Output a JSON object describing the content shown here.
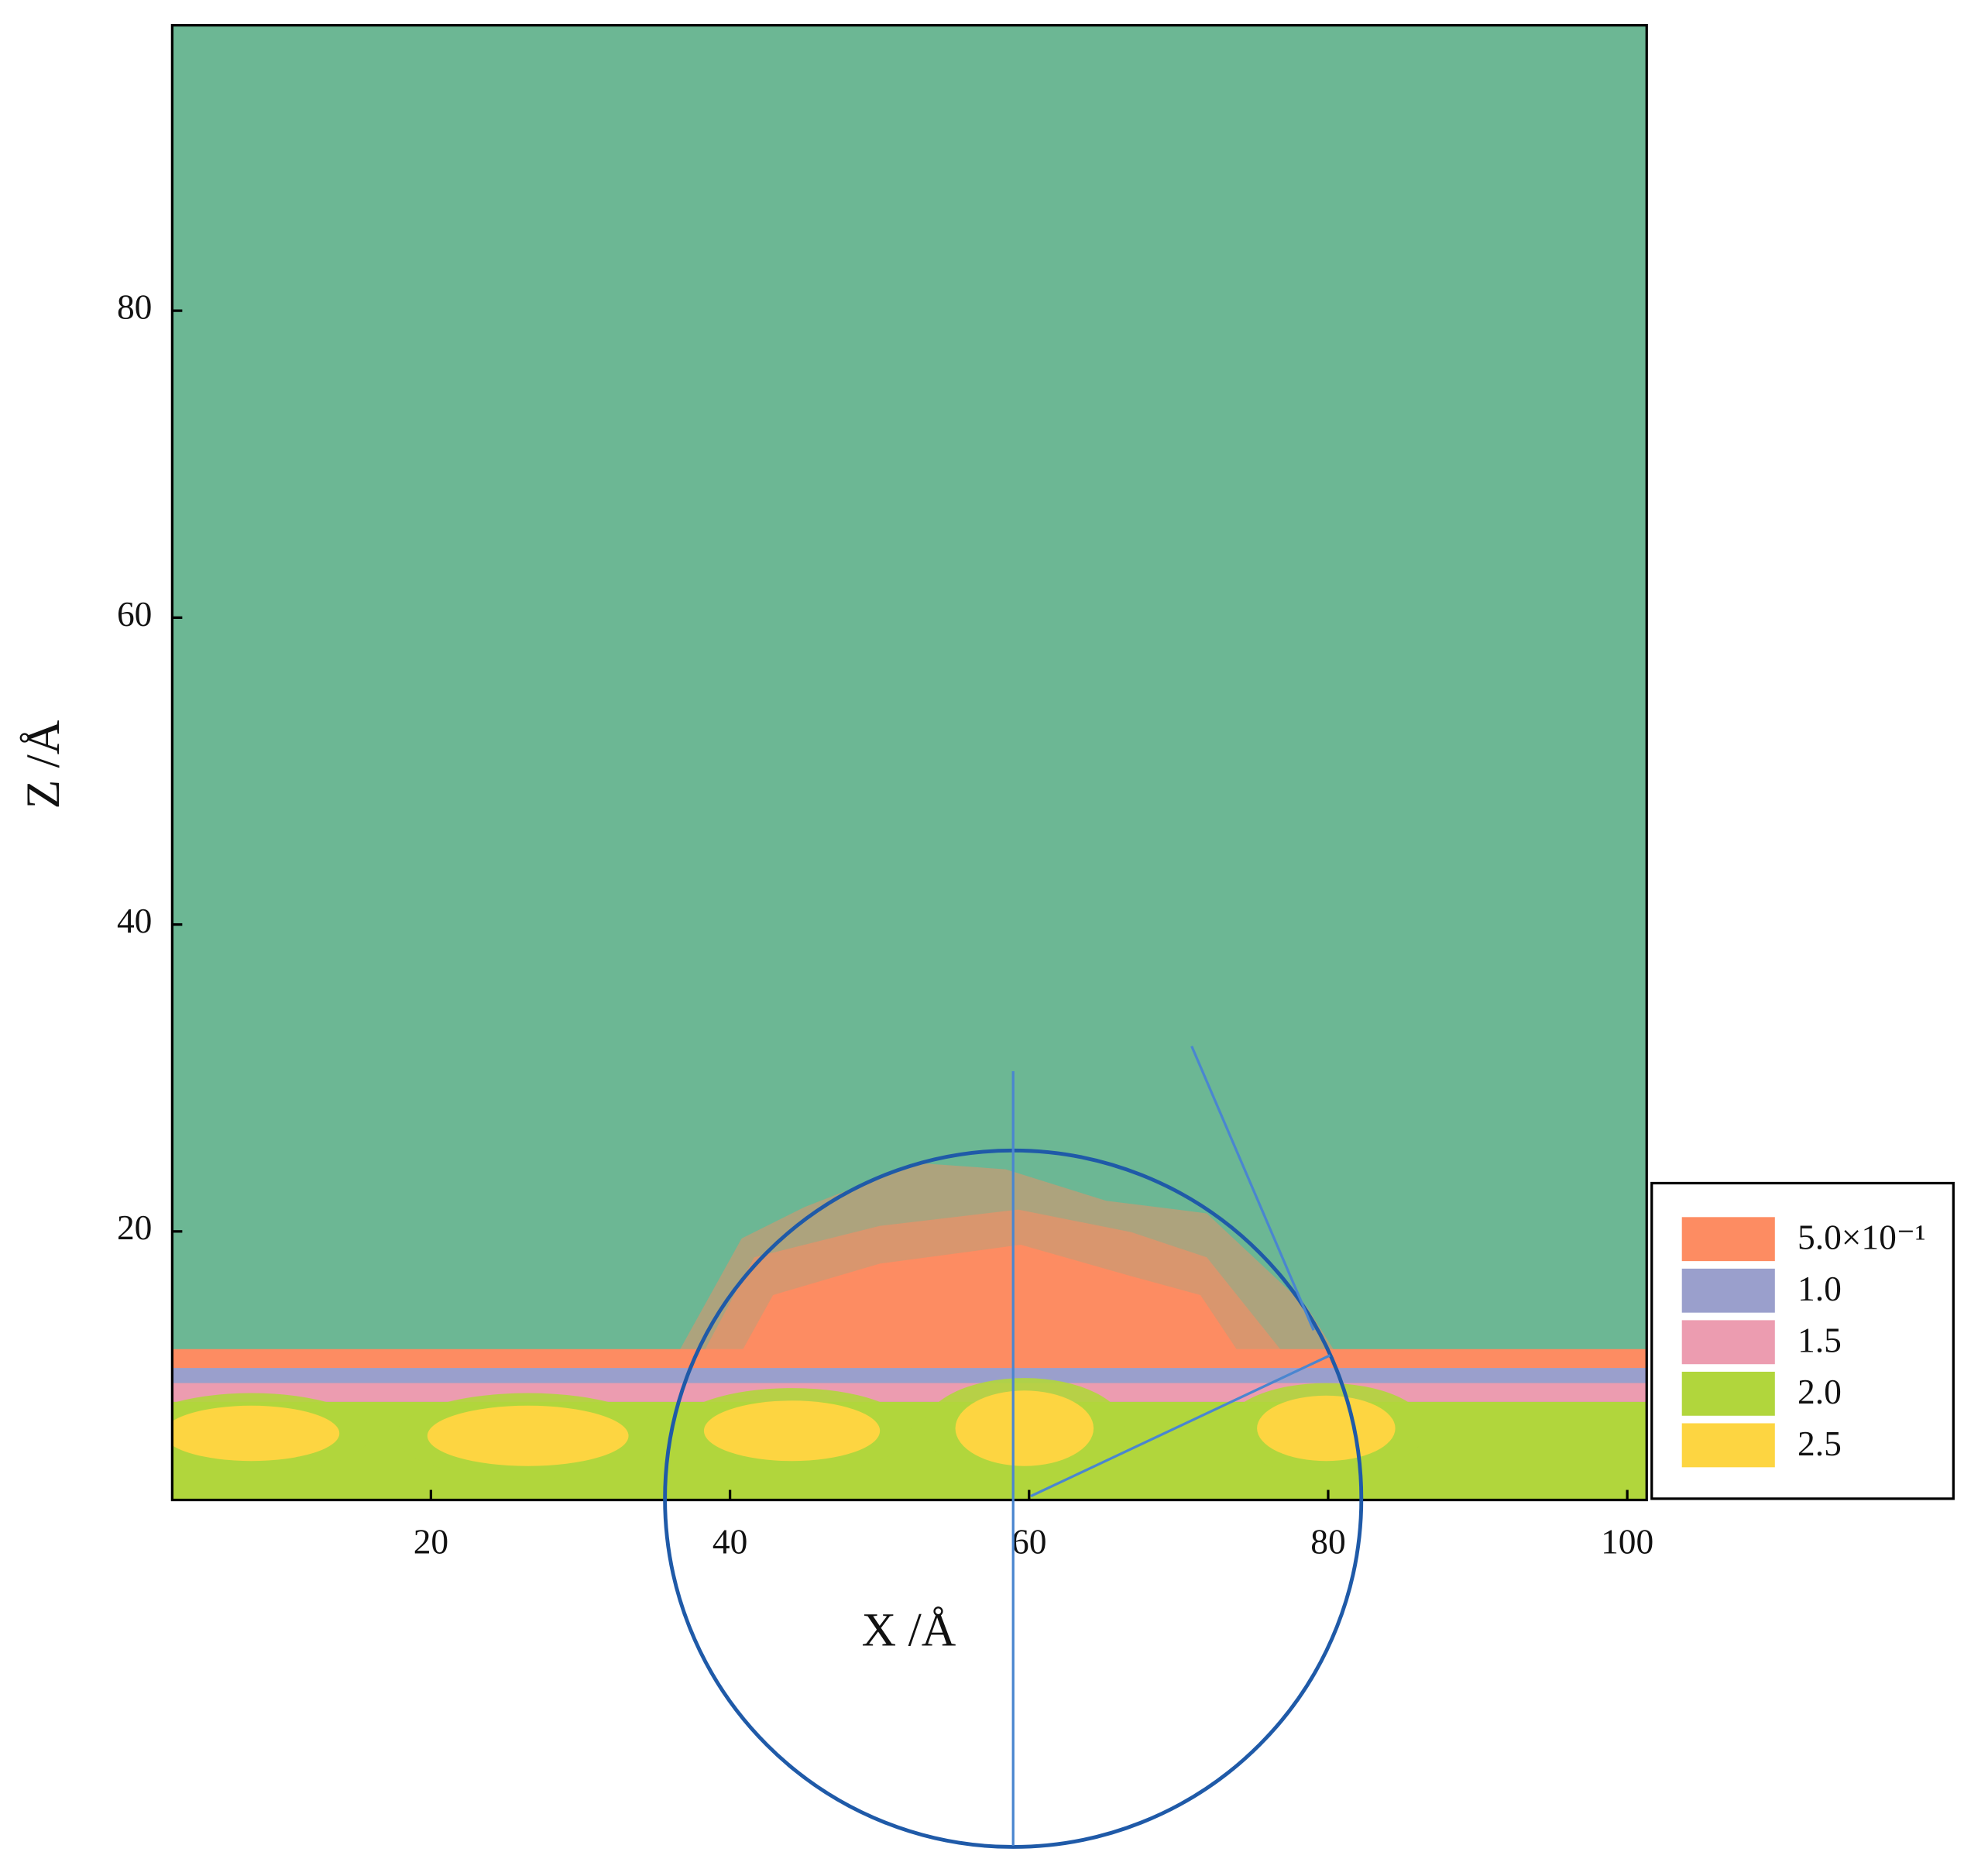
{
  "chart_data": {
    "type": "contour",
    "x_label": "X /Å",
    "y_label": "Z /Å",
    "xlim": [
      2.7,
      101.3
    ],
    "ylim": [
      2.5,
      98.6
    ],
    "xticks": [
      20,
      40,
      60,
      80,
      100
    ],
    "yticks": [
      20,
      40,
      60,
      80
    ],
    "background": "#6cb794",
    "levels": [
      {
        "value": 0.5,
        "label": "5.0×10⁻¹"
      },
      {
        "value": 1.0,
        "label": "1.0"
      },
      {
        "value": 1.5,
        "label": "1.5"
      },
      {
        "value": 2.0,
        "label": "2.0"
      },
      {
        "value": 2.5,
        "label": "2.5"
      }
    ],
    "colors": [
      "#fd8c62",
      "#9a9fcc",
      "#ec9cb0",
      "#b1d63c",
      "#fdd541"
    ]
  }
}
